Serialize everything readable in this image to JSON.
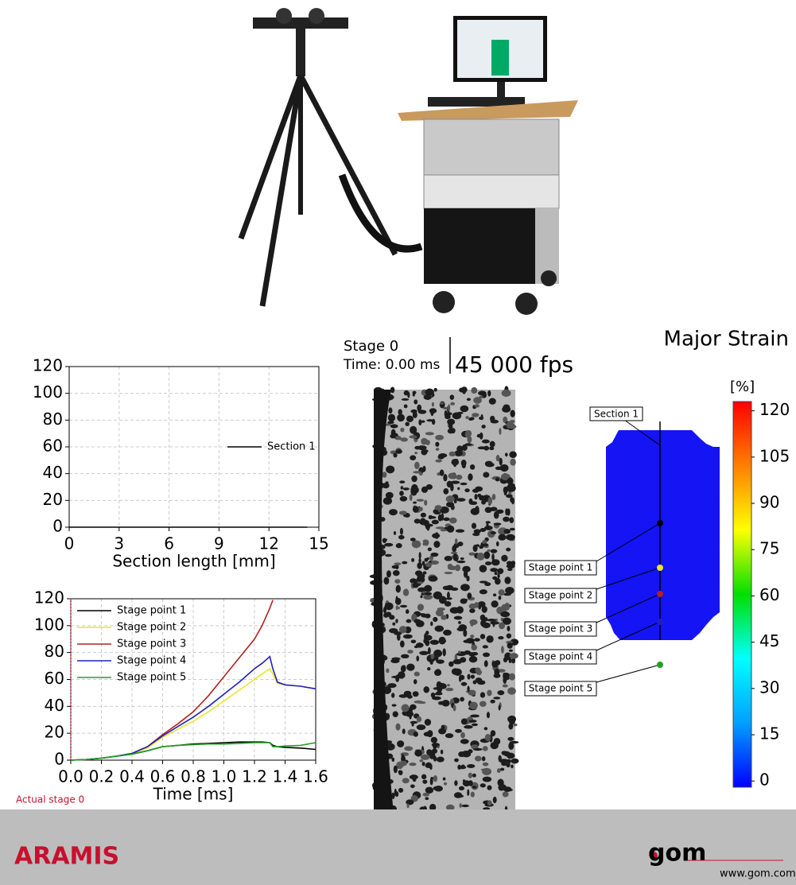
{
  "header": {
    "stage": "Stage 0",
    "time": "Time: 0.00 ms",
    "fps": "45 000 fps",
    "strain_title": "Major Strain"
  },
  "specimen": {
    "section": "Section 1"
  },
  "footer": {
    "brand": "ARAMIS",
    "logo": "gom",
    "url": "www.gom.com"
  },
  "chart_data": [
    {
      "type": "line",
      "x_label": "Section length [mm]",
      "grid": true,
      "legend": "right",
      "x": [
        0,
        14.3
      ],
      "series": [
        {
          "name": "Section 1",
          "color": "#000000",
          "values": [
            0,
            0
          ]
        }
      ],
      "xlim": [
        0,
        15
      ],
      "xticks": [
        0,
        3,
        6,
        9,
        12,
        15
      ],
      "ylim": [
        0,
        120
      ],
      "yticks": [
        0,
        20,
        40,
        60,
        80,
        100,
        120
      ]
    },
    {
      "type": "line",
      "x_label": "Time [ms]",
      "grid": true,
      "legend": "top-left",
      "annotation": "Actual stage 0",
      "x": [
        0,
        0.1,
        0.2,
        0.3,
        0.4,
        0.5,
        0.6,
        0.7,
        0.8,
        0.9,
        1.0,
        1.1,
        1.2,
        1.25,
        1.3,
        1.32,
        1.35,
        1.4,
        1.5,
        1.6
      ],
      "series": [
        {
          "name": "Stage point 1",
          "color": "#000000",
          "values": [
            0,
            0.5,
            1.5,
            3,
            4.5,
            7,
            10,
            11,
            12,
            12.5,
            13,
            13.5,
            13.5,
            13.5,
            13,
            11,
            10,
            9.5,
            9,
            8
          ]
        },
        {
          "name": "Stage point 2",
          "color": "#e6e62e",
          "values": [
            0,
            0.5,
            1.5,
            3,
            5,
            9,
            17,
            23,
            29,
            36,
            44,
            52,
            60,
            64,
            68,
            64,
            57,
            56,
            55,
            53
          ]
        },
        {
          "name": "Stage point 3",
          "color": "#b22222",
          "values": [
            0,
            0.5,
            1.5,
            3,
            5,
            10,
            19,
            27,
            36,
            48,
            62,
            76,
            90,
            100,
            113,
            119,
            null,
            null,
            null,
            null
          ]
        },
        {
          "name": "Stage point 4",
          "color": "#2020c0",
          "values": [
            0,
            0.5,
            1.5,
            3,
            5,
            10,
            18,
            25,
            32,
            40,
            49,
            58,
            68,
            72,
            77,
            68,
            58,
            56,
            55,
            53
          ]
        },
        {
          "name": "Stage point 5",
          "color": "#22a022",
          "values": [
            0,
            0.5,
            1.5,
            3,
            4.5,
            7,
            10,
            11,
            11.5,
            12,
            12,
            12.5,
            13,
            13,
            13,
            10,
            10,
            10.5,
            11,
            13
          ]
        }
      ],
      "xlim": [
        0,
        1.6
      ],
      "xticks": [
        {
          "value": 0,
          "label": "0.0"
        },
        0.2,
        0.4,
        0.6,
        0.8,
        {
          "value": 1,
          "label": "1.0"
        },
        1.2,
        1.4,
        1.6
      ],
      "ylim": [
        0,
        120
      ],
      "yticks": [
        0,
        20,
        40,
        60,
        80,
        100,
        120
      ]
    },
    {
      "type": "colorbar",
      "unit": "[%]",
      "clim": [
        -2,
        123
      ],
      "colors": [
        "#0000ff",
        "#00a0ff",
        "#00ffff",
        "#00e000",
        "#ffff00",
        "#ff8000",
        "#ff0000"
      ],
      "ticks": [
        0,
        15,
        30,
        45,
        60,
        75,
        90,
        105,
        120
      ]
    }
  ]
}
